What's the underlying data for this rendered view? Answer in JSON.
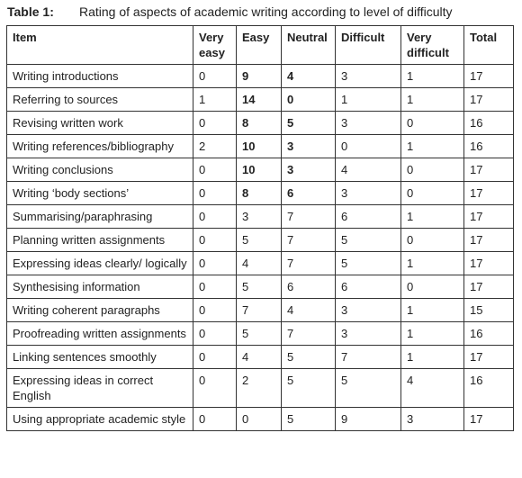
{
  "caption": {
    "label": "Table 1:",
    "text": "Rating of aspects of academic writing according to level of difficulty"
  },
  "table": {
    "headers": [
      "Item",
      "Very easy",
      "Easy",
      "Neutral",
      "Difficult",
      "Very difficult",
      "Total"
    ],
    "rows": [
      [
        "Writing introductions",
        0,
        9,
        4,
        3,
        1,
        17
      ],
      [
        "Referring to sources",
        1,
        14,
        0,
        1,
        1,
        17
      ],
      [
        "Revising written work",
        0,
        8,
        5,
        3,
        0,
        16
      ],
      [
        "Writing references/bibliography",
        2,
        10,
        3,
        0,
        1,
        16
      ],
      [
        "Writing conclusions",
        0,
        10,
        3,
        4,
        0,
        17
      ],
      [
        "Writing ‘body sections’",
        0,
        8,
        6,
        3,
        0,
        17
      ],
      [
        "Summarising/paraphrasing",
        0,
        3,
        7,
        6,
        1,
        17
      ],
      [
        "Planning written assignments",
        0,
        5,
        7,
        5,
        0,
        17
      ],
      [
        "Expressing ideas clearly/ logically",
        0,
        4,
        7,
        5,
        1,
        17
      ],
      [
        "Synthesising information",
        0,
        5,
        6,
        6,
        0,
        17
      ],
      [
        "Writing coherent paragraphs",
        0,
        7,
        4,
        3,
        1,
        15
      ],
      [
        "Proofreading written assignments",
        0,
        5,
        7,
        3,
        1,
        16
      ],
      [
        "Linking sentences smoothly",
        0,
        4,
        5,
        7,
        1,
        17
      ],
      [
        "Expressing ideas in correct English",
        0,
        2,
        5,
        5,
        4,
        16
      ],
      [
        "Using appropriate academic style",
        0,
        0,
        5,
        9,
        3,
        17
      ]
    ]
  }
}
